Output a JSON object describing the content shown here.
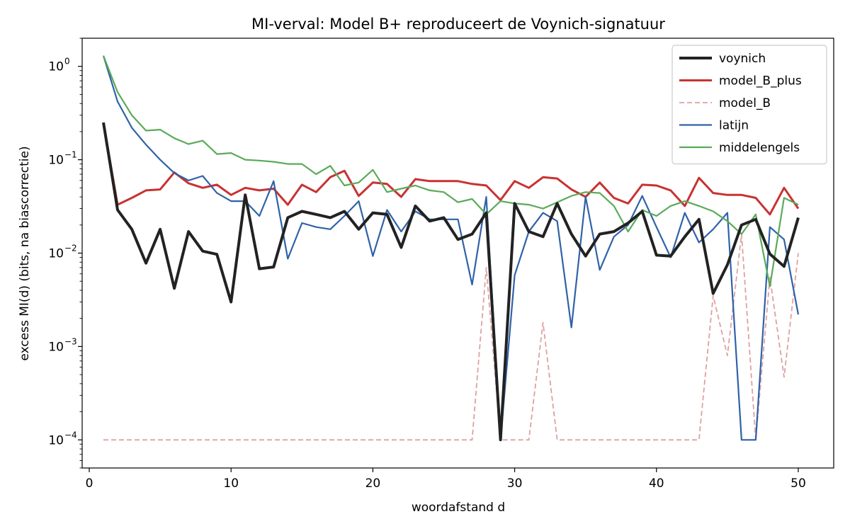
{
  "chart_data": {
    "type": "line",
    "title": "MI-verval: Model B+ reproduceert de Voynich-signatuur",
    "xlabel": "woordafstand d",
    "ylabel": "excess MI(d) (bits, na biascorrectie)",
    "yscale": "log",
    "xlim": [
      -0.5,
      52.5
    ],
    "ylim": [
      5e-05,
      2.0
    ],
    "xticks": [
      0,
      10,
      20,
      30,
      40,
      50
    ],
    "xtick_labels": [
      "0",
      "10",
      "20",
      "30",
      "40",
      "50"
    ],
    "yticks": [
      0.0001,
      0.001,
      0.01,
      0.1,
      1
    ],
    "ytick_labels": [
      {
        "base": "10",
        "exp": "−4"
      },
      {
        "base": "10",
        "exp": "−3"
      },
      {
        "base": "10",
        "exp": "−2"
      },
      {
        "base": "10",
        "exp": "−1"
      },
      {
        "base": "10",
        "exp": "0"
      }
    ],
    "legend_position": "top-right",
    "x": [
      1,
      2,
      3,
      4,
      5,
      6,
      7,
      8,
      9,
      10,
      11,
      12,
      13,
      14,
      15,
      16,
      17,
      18,
      19,
      20,
      21,
      22,
      23,
      24,
      25,
      26,
      27,
      28,
      29,
      30,
      31,
      32,
      33,
      34,
      35,
      36,
      37,
      38,
      39,
      40,
      41,
      42,
      43,
      44,
      45,
      46,
      47,
      48,
      49,
      50
    ],
    "series": [
      {
        "name": "voynich",
        "color": "#222222",
        "style": "solid",
        "width": 4,
        "values": [
          0.25,
          0.029,
          0.018,
          0.0078,
          0.018,
          0.0042,
          0.017,
          0.0105,
          0.0097,
          0.003,
          0.042,
          0.0068,
          0.0071,
          0.024,
          0.028,
          0.026,
          0.024,
          0.028,
          0.018,
          0.027,
          0.026,
          0.0115,
          0.032,
          0.022,
          0.024,
          0.014,
          0.016,
          0.027,
          0.0001,
          0.034,
          0.017,
          0.015,
          0.034,
          0.016,
          0.0093,
          0.016,
          0.017,
          0.021,
          0.028,
          0.0095,
          0.0093,
          0.015,
          0.023,
          0.0037,
          0.0075,
          0.02,
          0.023,
          0.0098,
          0.0072,
          0.024
        ]
      },
      {
        "name": "model_B_plus",
        "color": "#c83232",
        "style": "solid",
        "width": 3,
        "values": [
          0.25,
          0.033,
          0.039,
          0.047,
          0.048,
          0.073,
          0.056,
          0.05,
          0.054,
          0.042,
          0.05,
          0.047,
          0.049,
          0.033,
          0.054,
          0.045,
          0.065,
          0.076,
          0.041,
          0.057,
          0.055,
          0.04,
          0.062,
          0.059,
          0.059,
          0.059,
          0.055,
          0.053,
          0.037,
          0.059,
          0.05,
          0.065,
          0.063,
          0.048,
          0.04,
          0.057,
          0.039,
          0.034,
          0.054,
          0.053,
          0.047,
          0.032,
          0.064,
          0.044,
          0.042,
          0.042,
          0.039,
          0.026,
          0.05,
          0.03
        ]
      },
      {
        "name": "model_B",
        "color": "#e0a0a0",
        "style": "dashed",
        "width": 1.8,
        "values": [
          0.0001,
          0.0001,
          0.0001,
          0.0001,
          0.0001,
          0.0001,
          0.0001,
          0.0001,
          0.0001,
          0.0001,
          0.0001,
          0.0001,
          0.0001,
          0.0001,
          0.0001,
          0.0001,
          0.0001,
          0.0001,
          0.0001,
          0.0001,
          0.0001,
          0.0001,
          0.0001,
          0.0001,
          0.0001,
          0.0001,
          0.0001,
          0.007,
          0.0001,
          0.0001,
          0.0001,
          0.0018,
          0.0001,
          0.0001,
          0.0001,
          0.0001,
          0.0001,
          0.0001,
          0.0001,
          0.0001,
          0.0001,
          0.0001,
          0.0001,
          0.0035,
          0.0008,
          0.016,
          0.0001,
          0.0055,
          0.00047,
          0.01
        ]
      },
      {
        "name": "latijn",
        "color": "#2f62a8",
        "style": "solid",
        "width": 2.2,
        "values": [
          1.3,
          0.42,
          0.22,
          0.145,
          0.1,
          0.072,
          0.06,
          0.067,
          0.044,
          0.036,
          0.036,
          0.025,
          0.059,
          0.0087,
          0.021,
          0.019,
          0.018,
          0.025,
          0.036,
          0.0093,
          0.029,
          0.017,
          0.028,
          0.023,
          0.023,
          0.023,
          0.0046,
          0.04,
          0.0001,
          0.0058,
          0.017,
          0.027,
          0.022,
          0.0016,
          0.04,
          0.0066,
          0.015,
          0.02,
          0.041,
          0.019,
          0.009,
          0.027,
          0.013,
          0.018,
          0.027,
          0.0001,
          0.0001,
          0.019,
          0.014,
          0.0022
        ]
      },
      {
        "name": "middelengels",
        "color": "#5aaa5a",
        "style": "solid",
        "width": 2.2,
        "values": [
          1.3,
          0.53,
          0.3,
          0.205,
          0.21,
          0.17,
          0.147,
          0.16,
          0.115,
          0.118,
          0.1,
          0.098,
          0.095,
          0.09,
          0.09,
          0.07,
          0.086,
          0.053,
          0.057,
          0.078,
          0.045,
          0.049,
          0.053,
          0.047,
          0.045,
          0.035,
          0.038,
          0.026,
          0.036,
          0.034,
          0.033,
          0.03,
          0.035,
          0.041,
          0.045,
          0.044,
          0.032,
          0.017,
          0.029,
          0.025,
          0.032,
          0.036,
          0.032,
          0.028,
          0.022,
          0.016,
          0.026,
          0.0044,
          0.039,
          0.033
        ]
      }
    ]
  }
}
